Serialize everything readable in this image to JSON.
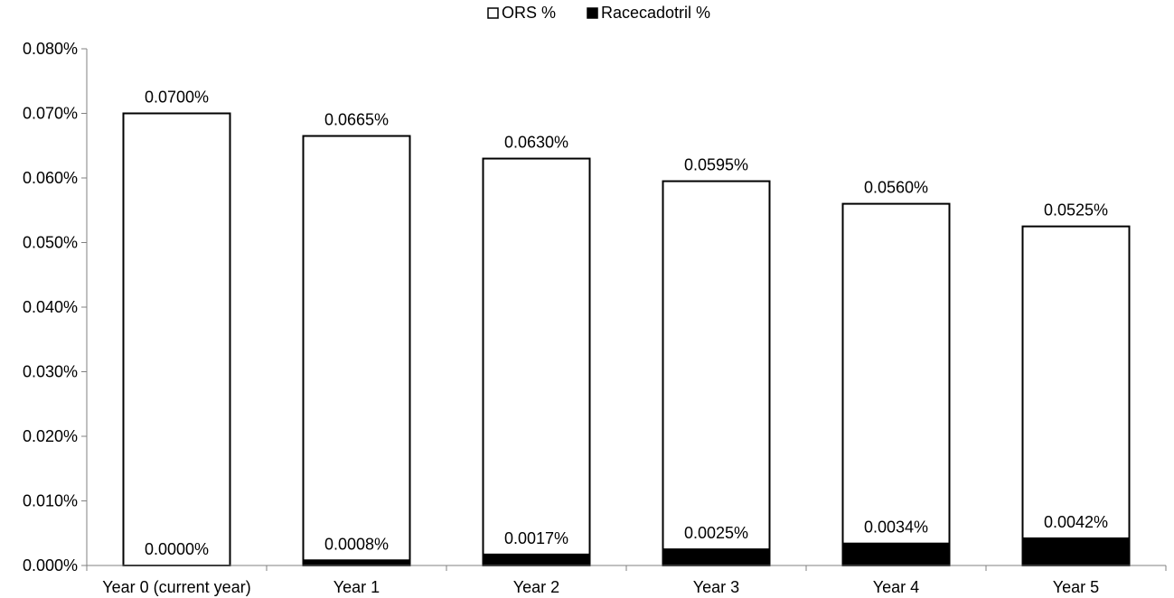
{
  "chart_data": {
    "type": "bar",
    "stacked": false,
    "overlapping": true,
    "categories": [
      "Year 0 (current year)",
      "Year 1",
      "Year 2",
      "Year 3",
      "Year 4",
      "Year 5"
    ],
    "series": [
      {
        "name": "ORS %",
        "values": [
          0.07,
          0.0665,
          0.063,
          0.0595,
          0.056,
          0.0525
        ],
        "labels": [
          "0.0700%",
          "0.0665%",
          "0.0630%",
          "0.0595%",
          "0.0560%",
          "0.0525%"
        ],
        "fill": "#ffffff",
        "stroke": "#000000"
      },
      {
        "name": "Racecadotril %",
        "values": [
          0.0,
          0.0008,
          0.0017,
          0.0025,
          0.0034,
          0.0042
        ],
        "labels": [
          "0.0000%",
          "0.0008%",
          "0.0017%",
          "0.0025%",
          "0.0034%",
          "0.0042%"
        ],
        "fill": "#000000",
        "stroke": "#000000"
      }
    ],
    "ylim": [
      0,
      0.08
    ],
    "yticks": [
      0,
      0.01,
      0.02,
      0.03,
      0.04,
      0.05,
      0.06,
      0.07,
      0.08
    ],
    "ytick_labels": [
      "0.000%",
      "0.010%",
      "0.020%",
      "0.030%",
      "0.040%",
      "0.050%",
      "0.060%",
      "0.070%",
      "0.080%"
    ],
    "title": "",
    "xlabel": "",
    "ylabel": "",
    "grid": false,
    "legend_position": "top-center"
  }
}
